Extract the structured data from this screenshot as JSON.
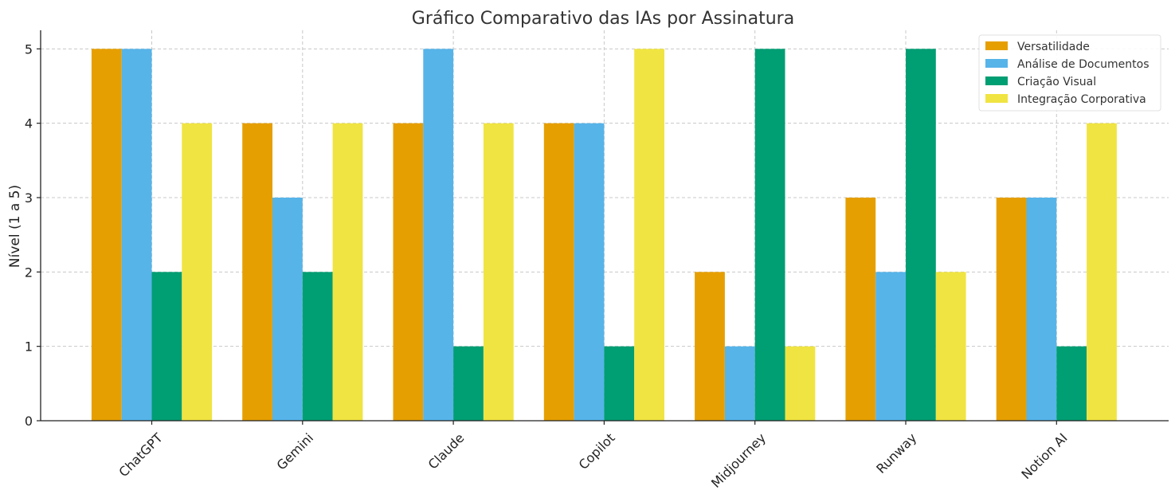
{
  "chart_data": {
    "type": "bar",
    "title": "Gráfico Comparativo das IAs por Assinatura",
    "xlabel": "",
    "ylabel": "Nível (1 a 5)",
    "ylim": [
      0,
      5.25
    ],
    "yticks": [
      "0",
      "1",
      "2",
      "3",
      "4",
      "5"
    ],
    "categories": [
      "ChatGPT",
      "Gemini",
      "Claude",
      "Copilot",
      "Midjourney",
      "Runway",
      "Notion AI"
    ],
    "grid": true,
    "legend_position": "top-right",
    "series": [
      {
        "name": "Versatilidade",
        "color": "#E69F00",
        "values": [
          5,
          4,
          4,
          4,
          2,
          3,
          3
        ]
      },
      {
        "name": "Análise de Documentos",
        "color": "#56B4E9",
        "values": [
          5,
          3,
          5,
          4,
          1,
          2,
          3
        ]
      },
      {
        "name": "Criação Visual",
        "color": "#009E73",
        "values": [
          2,
          2,
          1,
          1,
          5,
          5,
          1
        ]
      },
      {
        "name": "Integração Corporativa",
        "color": "#F0E442",
        "values": [
          4,
          4,
          4,
          5,
          1,
          2,
          4
        ]
      }
    ]
  }
}
